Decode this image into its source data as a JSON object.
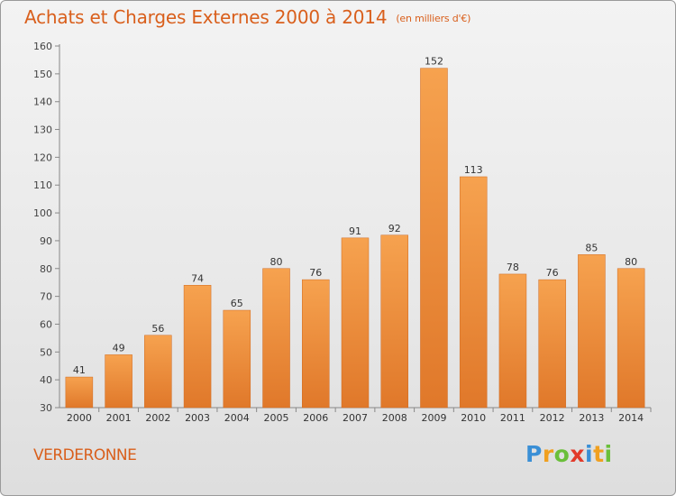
{
  "title": "Achats et Charges Externes 2000 à 2014",
  "unit": "(en milliers d'€)",
  "place": "VERDERONNE",
  "logo": {
    "text": "Proxiti",
    "letters": [
      {
        "ch": "P",
        "color": "#3a8fd6"
      },
      {
        "ch": "r",
        "color": "#f0a020"
      },
      {
        "ch": "o",
        "color": "#6abf3a"
      },
      {
        "ch": "x",
        "color": "#e23a2a"
      },
      {
        "ch": "i",
        "color": "#3a8fd6"
      },
      {
        "ch": "t",
        "color": "#f0a020"
      },
      {
        "ch": "i",
        "color": "#6abf3a"
      }
    ]
  },
  "colors": {
    "accent": "#d95f1c",
    "bar_top": "#f6a24f",
    "bar_bottom": "#e0782a"
  },
  "chart_data": {
    "type": "bar",
    "title": "Achats et Charges Externes 2000 à 2014",
    "subtitle": "(en milliers d'€)",
    "categories": [
      "2000",
      "2001",
      "2002",
      "2003",
      "2004",
      "2005",
      "2006",
      "2007",
      "2008",
      "2009",
      "2010",
      "2011",
      "2012",
      "2013",
      "2014"
    ],
    "values": [
      41,
      49,
      56,
      74,
      65,
      80,
      76,
      91,
      92,
      152,
      113,
      78,
      76,
      85,
      80
    ],
    "ylim": [
      30,
      160
    ],
    "yticks": [
      30,
      40,
      50,
      60,
      70,
      80,
      90,
      100,
      110,
      120,
      130,
      140,
      150,
      160
    ],
    "grid": false,
    "data_labels": true
  }
}
